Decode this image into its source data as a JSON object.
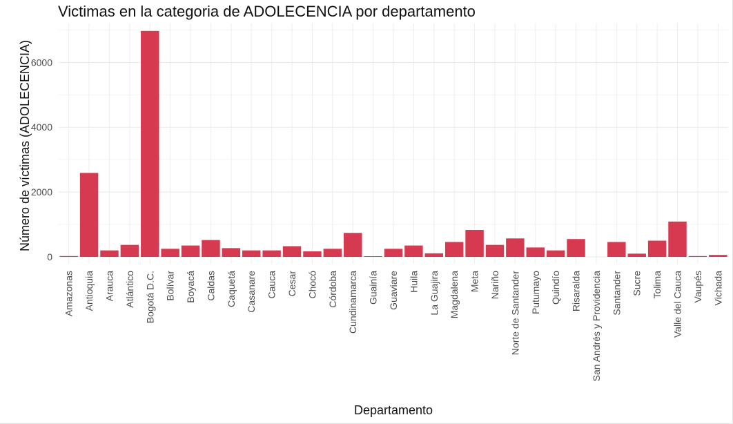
{
  "chart_data": {
    "type": "bar",
    "title": "Victimas en la categoria de ADOLECENCIA por departamento",
    "xlabel": "Departamento",
    "ylabel": "Número de víctimas (ADOLECENCIA)",
    "ylim": [
      0,
      7200
    ],
    "y_ticks": [
      0,
      2000,
      4000,
      6000
    ],
    "y_tick_labels": [
      "0",
      "2000",
      "4000",
      "6000"
    ],
    "grid": true,
    "bar_color": "#d63a50",
    "categories": [
      "Amazonas",
      "Antioquia",
      "Arauca",
      "Atlántico",
      "Bogotá D.C.",
      "Bolívar",
      "Boyacá",
      "Caldas",
      "Caquetá",
      "Casanare",
      "Cauca",
      "Cesar",
      "Chocó",
      "Córdoba",
      "Cundinamarca",
      "Guainía",
      "Guaviare",
      "Huila",
      "La Guajira",
      "Magdalena",
      "Meta",
      "Nariño",
      "Norte de Santander",
      "Putumayo",
      "Quindío",
      "Risaralda",
      "San Andrés y Providencia",
      "Santander",
      "Sucre",
      "Tolima",
      "Valle del Cauca",
      "Vaupés",
      "Vichada"
    ],
    "values": [
      25,
      2590,
      200,
      370,
      6970,
      250,
      350,
      520,
      270,
      200,
      200,
      330,
      170,
      250,
      740,
      20,
      250,
      350,
      110,
      460,
      830,
      370,
      570,
      290,
      200,
      550,
      0,
      460,
      100,
      500,
      1090,
      25,
      60
    ]
  }
}
